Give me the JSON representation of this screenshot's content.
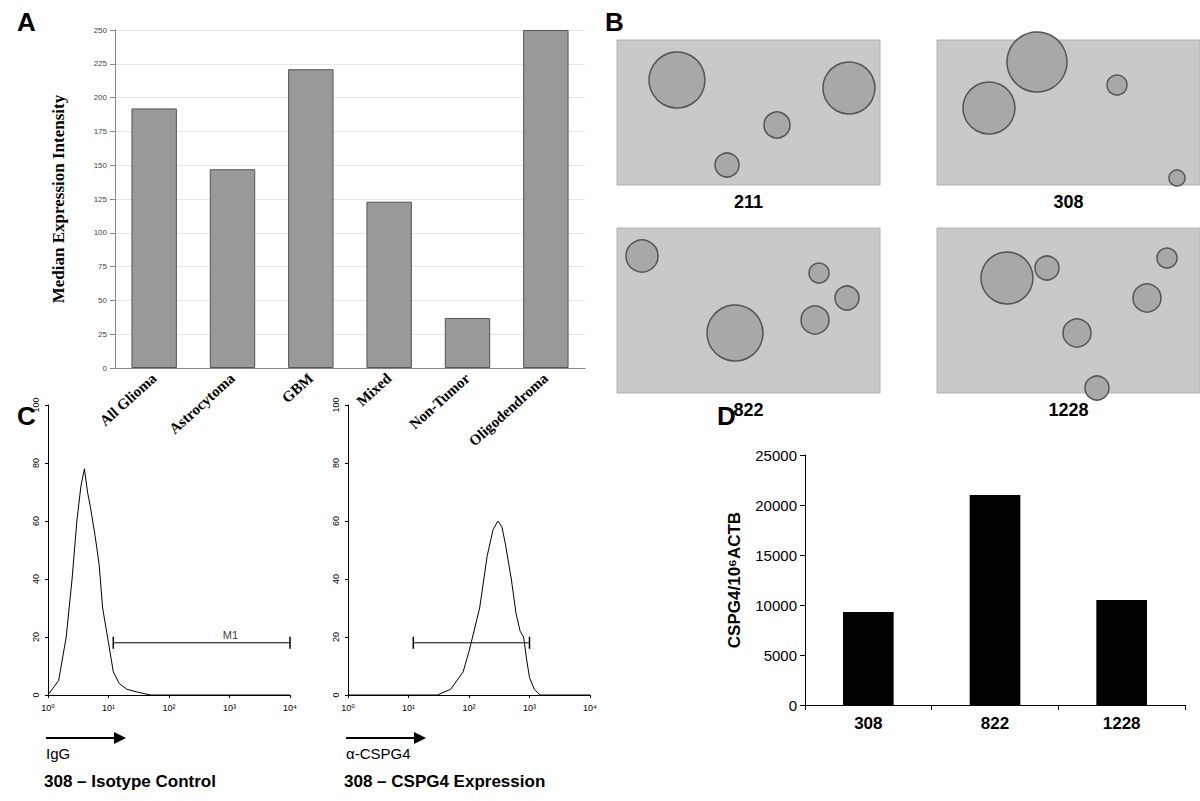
{
  "chart_data": [
    {
      "panel": "A",
      "type": "bar",
      "ylabel": "Median Expression Intensity",
      "categories": [
        "All Glioma",
        "Astrocytoma",
        "GBM",
        "Mixed",
        "Non-Tumor",
        "Oligodendroma"
      ],
      "values": [
        192,
        147,
        221,
        123,
        37,
        250
      ],
      "color": "#999999",
      "ylim": [
        0,
        250
      ],
      "yticks": [
        0,
        25,
        50,
        75,
        100,
        125,
        150,
        175,
        200,
        225,
        250
      ],
      "grid": true
    },
    {
      "panel": "B",
      "type": "image_grid",
      "labels": [
        "211",
        "308",
        "822",
        "1228"
      ]
    },
    {
      "panel": "C",
      "type": "line",
      "title": "308 – Isotype Control",
      "xlabel": "IgG",
      "x": [
        1,
        1.5,
        2,
        2.5,
        3,
        3.5,
        4,
        4.5,
        5,
        6,
        7,
        8,
        10,
        12,
        15,
        20,
        30,
        50,
        100,
        1000,
        10000
      ],
      "values": [
        0,
        5,
        20,
        40,
        60,
        72,
        78,
        70,
        65,
        55,
        45,
        30,
        18,
        8,
        4,
        2,
        1,
        0,
        0,
        0,
        0
      ],
      "color": "#000000",
      "log": "x",
      "xlim": [
        1,
        10000
      ],
      "xticks": [
        {
          "value": 1,
          "label": "10⁰"
        },
        {
          "value": 10,
          "label": "10¹"
        },
        {
          "value": 100,
          "label": "10²"
        },
        {
          "value": 1000,
          "label": "10³"
        },
        {
          "value": 10000,
          "label": "10⁴"
        }
      ],
      "ylim": [
        0,
        100
      ],
      "yticks": [
        0,
        20,
        40,
        60,
        80,
        100
      ],
      "gate": {
        "label": "M1",
        "x": [
          12,
          10000
        ],
        "y": 18
      }
    },
    {
      "panel": "",
      "type": "line",
      "title": "308 – CSPG4 Expression",
      "xlabel": "α-CSPG4",
      "x": [
        1,
        10,
        30,
        50,
        80,
        100,
        150,
        200,
        250,
        300,
        350,
        400,
        500,
        600,
        700,
        800,
        900,
        1000,
        1200,
        1500,
        10000
      ],
      "values": [
        0,
        0,
        0,
        2,
        8,
        15,
        30,
        48,
        57,
        60,
        58,
        52,
        40,
        28,
        22,
        20,
        12,
        6,
        2,
        0,
        0
      ],
      "color": "#000000",
      "log": "x",
      "xlim": [
        1,
        10000
      ],
      "xticks": [
        {
          "value": 1,
          "label": "10⁰"
        },
        {
          "value": 10,
          "label": "10¹"
        },
        {
          "value": 100,
          "label": "10²"
        },
        {
          "value": 1000,
          "label": "10³"
        },
        {
          "value": 10000,
          "label": "10⁴"
        }
      ],
      "ylim": [
        0,
        100
      ],
      "yticks": [
        0,
        20,
        40,
        60,
        80,
        100
      ],
      "gate": {
        "x": [
          12,
          1000
        ],
        "y": 18
      }
    },
    {
      "panel": "D",
      "type": "bar",
      "ylabel": "CSPG4/10⁶ACTB",
      "categories": [
        "308",
        "822",
        "1228"
      ],
      "values": [
        9300,
        21000,
        10500
      ],
      "color": "#000000",
      "ylim": [
        0,
        25000
      ],
      "yticks": [
        0,
        5000,
        10000,
        15000,
        20000,
        25000
      ],
      "grid": false
    }
  ]
}
